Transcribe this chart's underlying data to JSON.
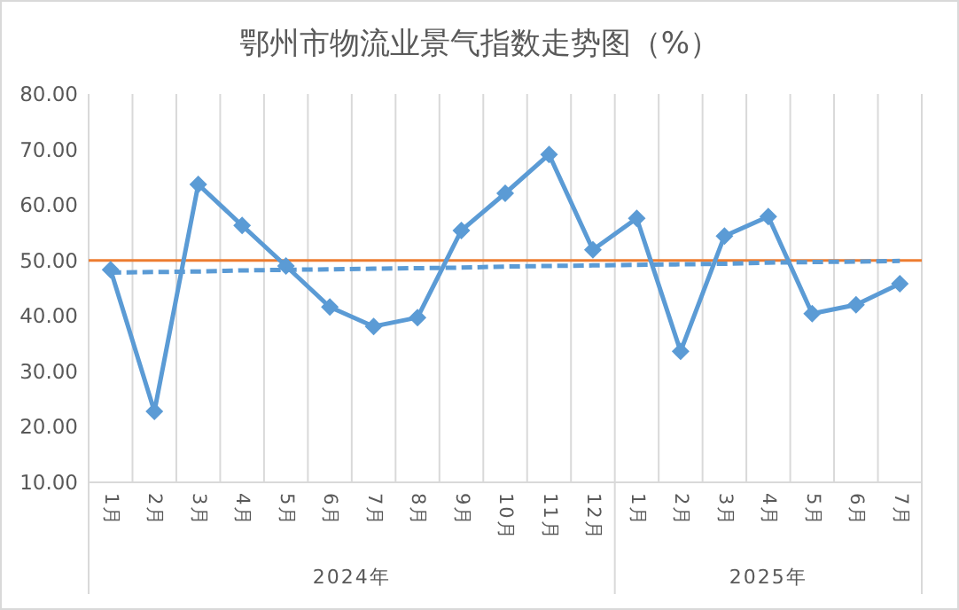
{
  "chart_data": {
    "type": "line",
    "title": "鄂州市物流业景气指数走势图（%）",
    "categories": [
      "1月",
      "2月",
      "3月",
      "4月",
      "5月",
      "6月",
      "7月",
      "8月",
      "9月",
      "10月",
      "11月",
      "12月",
      "1月",
      "2月",
      "3月",
      "4月",
      "5月",
      "6月",
      "7月"
    ],
    "annotations": [
      "2024年",
      "2025年"
    ],
    "series": [
      {
        "color": "#5b9bd5",
        "marker": "diamond",
        "line_style": "solid",
        "values": [
          48.3,
          22.8,
          63.7,
          56.3,
          49.0,
          41.6,
          38.1,
          39.7,
          55.4,
          62.1,
          69.1,
          51.9,
          57.6,
          33.6,
          54.4,
          57.9,
          40.4,
          42.0,
          45.8
        ]
      },
      {
        "color": "#5b9bd5",
        "marker": "none",
        "line_style": "dashed",
        "values": [
          47.8,
          47.9,
          48.0,
          48.2,
          48.3,
          48.4,
          48.5,
          48.6,
          48.7,
          48.9,
          49.0,
          49.1,
          49.2,
          49.3,
          49.4,
          49.6,
          49.7,
          49.8,
          49.9
        ]
      }
    ],
    "ref_lines": [
      {
        "axis": "y",
        "value": 50,
        "label": null,
        "color": "#ed7d31",
        "line_style": "solid"
      }
    ],
    "ylim": [
      10,
      80
    ],
    "yticks": [
      {
        "value": 10,
        "label": "10.00"
      },
      {
        "value": 20,
        "label": "20.00"
      },
      {
        "value": 30,
        "label": "30.00"
      },
      {
        "value": 40,
        "label": "40.00"
      },
      {
        "value": 50,
        "label": "50.00"
      },
      {
        "value": 60,
        "label": "60.00"
      },
      {
        "value": 70,
        "label": "70.00"
      },
      {
        "value": 80,
        "label": "80.00"
      }
    ],
    "grid": "x"
  }
}
